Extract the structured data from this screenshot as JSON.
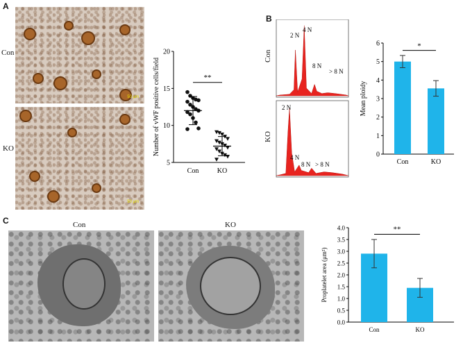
{
  "panels": {
    "A": {
      "letter": "A",
      "row_labels": [
        "Con",
        "KO"
      ],
      "scale_bar": "50 μm"
    },
    "B": {
      "letter": "B",
      "row_labels": [
        "Con",
        "KO"
      ],
      "con_peaks": [
        "2 N",
        "4 N",
        "8 N",
        "> 8 N"
      ],
      "ko_peaks": [
        "2 N",
        "4 N",
        "8 N",
        "> 8 N"
      ]
    },
    "C": {
      "letter": "C",
      "col_labels": [
        "Con",
        "KO"
      ]
    }
  },
  "chart_data": [
    {
      "type": "scatter",
      "id": "vwf",
      "ylabel": "Number of vWF positive cells/field",
      "categories": [
        "Con",
        "KO"
      ],
      "ylim": [
        5,
        20
      ],
      "yticks": [
        5,
        10,
        15,
        20
      ],
      "series": [
        {
          "category": "Con",
          "marker": "circle",
          "mean": 12.0,
          "sd": 1.9,
          "values": [
            14.5,
            14.0,
            13.7,
            13.5,
            13.4,
            13.2,
            12.8,
            12.5,
            12.2,
            12.0,
            11.8,
            11.5,
            11.0,
            10.4,
            9.6,
            9.5
          ]
        },
        {
          "category": "KO",
          "marker": "triangle-down",
          "mean": 7.2,
          "sd": 1.3,
          "values": [
            9.1,
            9.0,
            8.8,
            8.5,
            8.2,
            7.9,
            7.7,
            7.5,
            7.3,
            7.0,
            6.8,
            6.5,
            6.2,
            6.0,
            5.8,
            5.4
          ]
        }
      ],
      "significance": "**"
    },
    {
      "type": "bar",
      "id": "ploidy",
      "ylabel": "Mean ploidy",
      "categories": [
        "Con",
        "KO"
      ],
      "values": [
        5.0,
        3.55
      ],
      "errors": [
        0.33,
        0.42
      ],
      "ylim": [
        0,
        6
      ],
      "yticks": [
        0,
        1,
        2,
        3,
        4,
        5,
        6
      ],
      "significance": "*",
      "color": "#1fb4ea"
    },
    {
      "type": "bar",
      "id": "proplatelet",
      "ylabel": "Proplatelet area (μm²)",
      "categories": [
        "Con",
        "KO"
      ],
      "values": [
        2.9,
        1.45
      ],
      "errors": [
        0.6,
        0.4
      ],
      "ylim": [
        0,
        4.0
      ],
      "yticks": [
        "0.0",
        "0.5",
        "1.0",
        "1.5",
        "2.0",
        "2.5",
        "3.0",
        "3.5",
        "4.0"
      ],
      "significance": "**",
      "color": "#1fb4ea"
    }
  ]
}
